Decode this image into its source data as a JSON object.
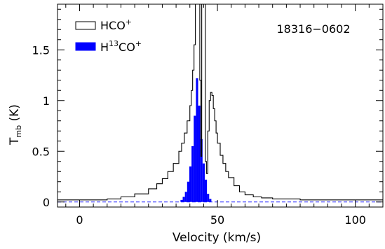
{
  "chart_data": {
    "type": "line",
    "annotation": "18316−0602",
    "xlabel": "Velocity (km/s)",
    "ylabel_main": "T",
    "ylabel_sub": "mb",
    "ylabel_unit": "(K)",
    "xlim": [
      -8,
      110
    ],
    "ylim": [
      -0.05,
      1.95
    ],
    "xticks": [
      0,
      50,
      100
    ],
    "yticks": [
      0,
      0.5,
      1,
      1.5
    ],
    "ytick_labels": [
      "0",
      "0.5",
      "1",
      "1.5"
    ],
    "grid": false,
    "legend_position": "top-left",
    "series": [
      {
        "name": "HCO",
        "name_sup": "+",
        "style": "step-outline",
        "color": "#000000",
        "x": [
          -8,
          0,
          10,
          15,
          20,
          25,
          28,
          30,
          32,
          34,
          36,
          37,
          38,
          39,
          40,
          40.5,
          41,
          41.5,
          42,
          42.5,
          43,
          43.3,
          43.6,
          44,
          44.3,
          44.6,
          45,
          45.3,
          45.6,
          46,
          46.5,
          47,
          47.5,
          48,
          48.5,
          49,
          49.5,
          50,
          51,
          52,
          53,
          54,
          56,
          58,
          60,
          63,
          66,
          70,
          75,
          80,
          90,
          100,
          110
        ],
        "y": [
          0.02,
          0.02,
          0.03,
          0.05,
          0.08,
          0.13,
          0.18,
          0.23,
          0.3,
          0.38,
          0.5,
          0.58,
          0.68,
          0.8,
          0.95,
          1.1,
          1.3,
          1.55,
          1.95,
          1.95,
          1.95,
          1.95,
          1.2,
          0.45,
          1.95,
          1.95,
          1.95,
          1.95,
          0.4,
          0.28,
          0.7,
          1.0,
          1.08,
          1.05,
          0.92,
          0.8,
          0.68,
          0.58,
          0.46,
          0.38,
          0.3,
          0.24,
          0.16,
          0.1,
          0.07,
          0.05,
          0.04,
          0.03,
          0.03,
          0.02,
          0.02,
          0.02,
          0.02
        ]
      },
      {
        "name": "H",
        "name_sup": "13",
        "name_mid": "CO",
        "name_sup2": "+",
        "style": "filled-bars",
        "color": "#0000ff",
        "x": [
          37,
          37.8,
          38.6,
          39.4,
          40.2,
          41,
          41.8,
          42.6,
          43.4,
          44.2,
          45,
          45.8,
          46.6,
          47.4
        ],
        "y": [
          0.02,
          0.05,
          0.1,
          0.2,
          0.35,
          0.55,
          0.85,
          1.22,
          0.95,
          0.62,
          0.38,
          0.22,
          0.08,
          0.03
        ]
      }
    ]
  }
}
